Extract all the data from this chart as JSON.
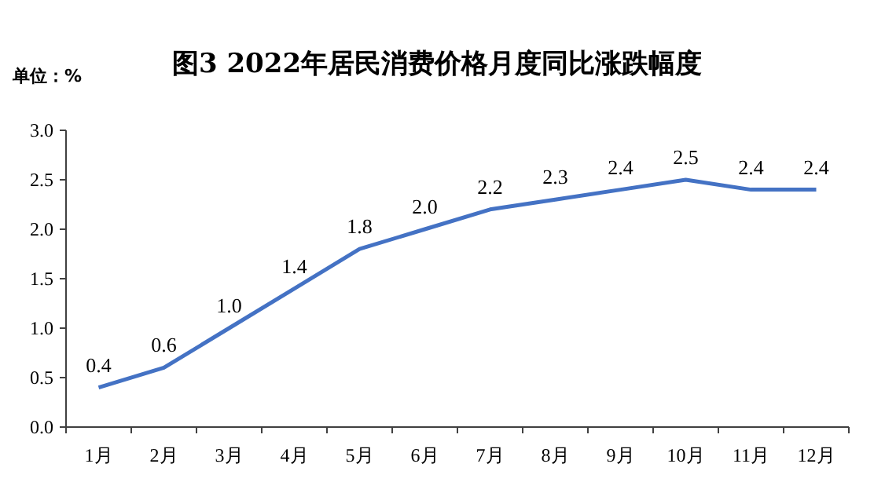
{
  "chart_data": {
    "type": "line",
    "title": "图3 2022年居民消费价格月度同比涨跌幅度",
    "ylabel": "单位：%",
    "categories": [
      "1月",
      "2月",
      "3月",
      "4月",
      "5月",
      "6月",
      "7月",
      "8月",
      "9月",
      "10月",
      "11月",
      "12月"
    ],
    "series": [
      {
        "color": "#4472c4",
        "values": [
          0.4,
          0.6,
          1.0,
          1.4,
          1.8,
          2.0,
          2.2,
          2.3,
          2.4,
          2.5,
          2.4,
          2.4
        ],
        "value_labels": [
          "0.4",
          "0.6",
          "1.0",
          "1.4",
          "1.8",
          "2.0",
          "2.2",
          "2.3",
          "2.4",
          "2.5",
          "2.4",
          "2.4"
        ]
      }
    ],
    "ylim": [
      0,
      3
    ],
    "yticks": [
      {
        "value": 0,
        "label": "0.0"
      },
      0.5,
      {
        "value": 1,
        "label": "1.0"
      },
      1.5,
      {
        "value": 2,
        "label": "2.0"
      },
      2.5,
      {
        "value": 3,
        "label": "3.0"
      }
    ],
    "grid": false
  }
}
